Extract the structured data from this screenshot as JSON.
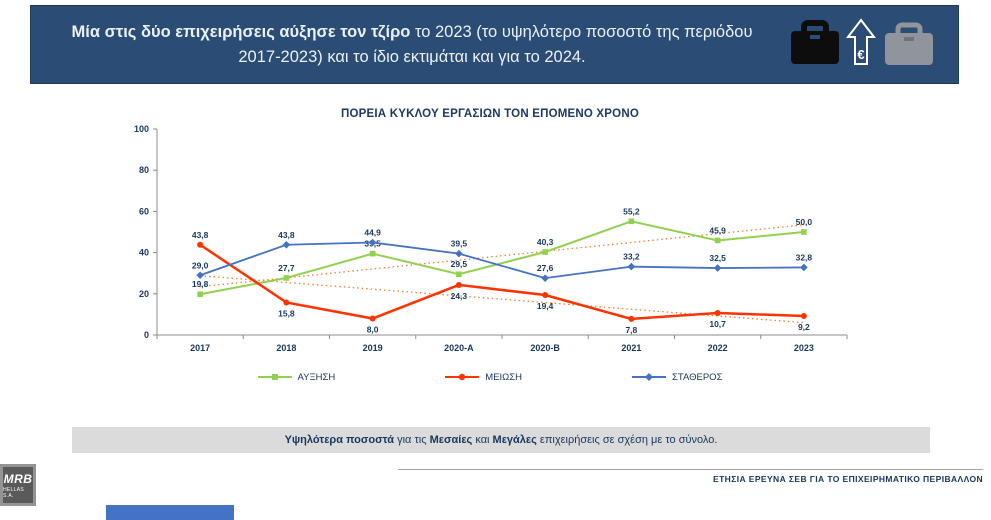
{
  "banner": {
    "bg_color": "#2B4C74",
    "text_bold": "Μία στις δύο επιχειρήσεις αύξησε τον τζίρο",
    "text_regular": " το 2023 (το υψηλότερο ποσοστό της περιόδου 2017-2023) και το ίδιο εκτιμάται και για το 2024.",
    "icons": [
      "briefcase-dark",
      "euro-up-arrow",
      "briefcase-gray"
    ]
  },
  "chart_data": {
    "type": "line",
    "title": "ΠΟΡΕΙΑ ΚΥΚΛΟΥ ΕΡΓΑΣΙΩΝ ΤΟΝ ΕΠΟΜΕΝΟ ΧΡΟΝΟ",
    "categories": [
      "2017",
      "2018",
      "2019",
      "2020-A",
      "2020-B",
      "2021",
      "2022",
      "2023"
    ],
    "series": [
      {
        "name": "ΑΥΞΗΣΗ",
        "color": "#92D050",
        "marker": "square",
        "width": 2,
        "label_position": "above",
        "values": [
          19.8,
          27.7,
          39.5,
          29.5,
          40.3,
          55.2,
          45.9,
          50.0
        ]
      },
      {
        "name": "ΜΕΙΩΣΗ",
        "color": "#FF3300",
        "marker": "circle",
        "width": 2.5,
        "label_position": "below",
        "label_overrides": {
          "0": "above"
        },
        "values": [
          43.8,
          15.8,
          8.0,
          24.3,
          19.4,
          7.8,
          10.7,
          9.2
        ]
      },
      {
        "name": "ΣΤΑΘΕΡΟΣ",
        "color": "#4472C4",
        "marker": "diamond",
        "width": 1.8,
        "label_position": "above",
        "values": [
          29.0,
          43.8,
          44.9,
          39.5,
          27.6,
          33.2,
          32.5,
          32.8
        ]
      }
    ],
    "ylim": [
      0,
      100
    ],
    "yticks": [
      0,
      20,
      40,
      60,
      80,
      100
    ],
    "grid": false,
    "legend_position": "bottom",
    "decimal_separator": ",",
    "trendlines": [
      {
        "series_index": 0,
        "color": "#ED7D31",
        "style": "dotted"
      },
      {
        "series_index": 1,
        "color": "#ED7D31",
        "style": "dotted"
      }
    ]
  },
  "footnote": {
    "bg_color": "#DBDBDB",
    "segments": [
      {
        "text": "Υψηλότερα ποσοστά",
        "bold": true
      },
      {
        "text": " για τις ",
        "bold": false
      },
      {
        "text": "Μεσαίες",
        "bold": true
      },
      {
        "text": " και ",
        "bold": false
      },
      {
        "text": "Μεγάλες",
        "bold": true
      },
      {
        "text": " επιχειρήσεις σε σχέση με το σύνολο.",
        "bold": false
      }
    ]
  },
  "footer": {
    "logo_line1": "MRB",
    "logo_line2": "HELLAS S.A.",
    "right_text": "ΕΤΗΣΙΑ ΕΡΕΥΝΑ ΣΕΒ ΓΙΑ ΤΟ ΕΠΙΧΕΙΡΗΜΑΤΙΚΟ ΠΕΡΙΒΑΛΛΟΝ",
    "accent_bar_color": "#4472C4"
  }
}
